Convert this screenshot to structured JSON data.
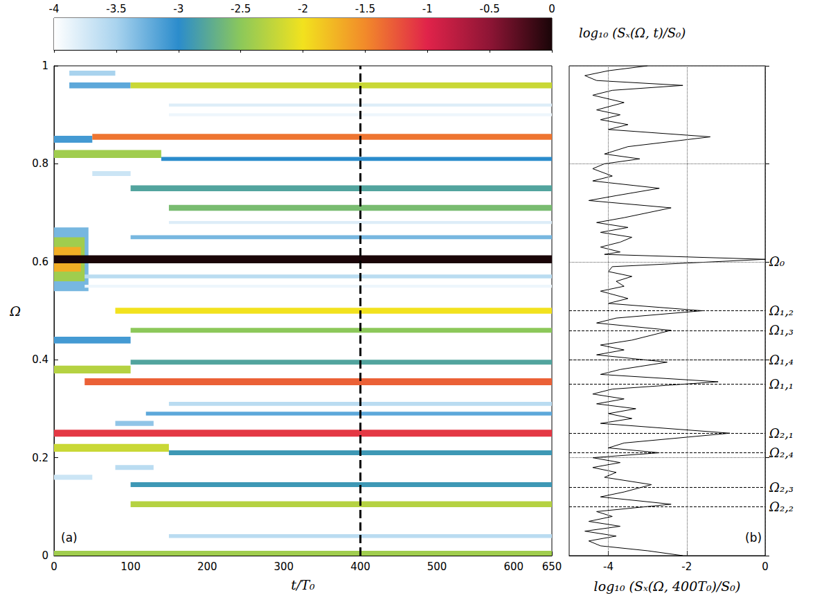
{
  "chart_data": [
    {
      "type": "heatmap",
      "panel_label": "(a)",
      "x_label": "t/T₀",
      "y_label": "Ω",
      "xlim": [
        0,
        650
      ],
      "xticks": [
        0,
        100,
        200,
        300,
        400,
        500,
        600
      ],
      "ylim": [
        0,
        1
      ],
      "yticks": [
        0,
        0.2,
        0.4,
        0.6,
        0.8,
        1
      ],
      "grid": false,
      "colorbar": {
        "label": "log₁₀ (Sₓ(Ω, t)/S₀)",
        "range": [
          -4,
          0
        ],
        "ticks": [
          -4,
          -3.5,
          -3,
          -2.5,
          -2,
          -1.5,
          -1,
          -0.5,
          0
        ]
      },
      "vline": {
        "x": 400,
        "line_style": "dashed"
      },
      "bands": [
        {
          "t": [
            0,
            45
          ],
          "omega": 0.605,
          "width": 0.13,
          "level": -3.3
        },
        {
          "t": [
            0,
            40
          ],
          "omega": 0.605,
          "width": 0.09,
          "level": -2.4
        },
        {
          "t": [
            0,
            35
          ],
          "omega": 0.605,
          "width": 0.05,
          "level": -1.7
        },
        {
          "t": [
            0,
            650
          ],
          "omega": 0.605,
          "width": 0.016,
          "level": 0
        },
        {
          "t": [
            0,
            650
          ],
          "omega": 0.005,
          "width": 0.01,
          "level": -2.4
        },
        {
          "t": [
            150,
            650
          ],
          "omega": 0.04,
          "width": 0.008,
          "level": -3.6
        },
        {
          "t": [
            100,
            650
          ],
          "omega": 0.105,
          "width": 0.012,
          "level": -2.3
        },
        {
          "t": [
            100,
            650
          ],
          "omega": 0.145,
          "width": 0.01,
          "level": -2.9
        },
        {
          "t": [
            0,
            50
          ],
          "omega": 0.16,
          "width": 0.01,
          "level": -3.7
        },
        {
          "t": [
            80,
            130
          ],
          "omega": 0.18,
          "width": 0.01,
          "level": -3.6
        },
        {
          "t": [
            0,
            150
          ],
          "omega": 0.22,
          "width": 0.016,
          "level": -2.2
        },
        {
          "t": [
            150,
            650
          ],
          "omega": 0.21,
          "width": 0.01,
          "level": -2.9
        },
        {
          "t": [
            0,
            650
          ],
          "omega": 0.25,
          "width": 0.014,
          "level": -1.1
        },
        {
          "t": [
            80,
            130
          ],
          "omega": 0.27,
          "width": 0.01,
          "level": -3.4
        },
        {
          "t": [
            120,
            650
          ],
          "omega": 0.29,
          "width": 0.008,
          "level": -3.2
        },
        {
          "t": [
            150,
            650
          ],
          "omega": 0.31,
          "width": 0.008,
          "level": -3.6
        },
        {
          "t": [
            40,
            650
          ],
          "omega": 0.355,
          "width": 0.014,
          "level": -1.3
        },
        {
          "t": [
            0,
            100
          ],
          "omega": 0.38,
          "width": 0.016,
          "level": -2.3
        },
        {
          "t": [
            100,
            650
          ],
          "omega": 0.395,
          "width": 0.01,
          "level": -2.8
        },
        {
          "t": [
            0,
            100
          ],
          "omega": 0.44,
          "width": 0.014,
          "level": -3.1
        },
        {
          "t": [
            100,
            650
          ],
          "omega": 0.46,
          "width": 0.01,
          "level": -2.5
        },
        {
          "t": [
            80,
            650
          ],
          "omega": 0.5,
          "width": 0.012,
          "level": -2.0
        },
        {
          "t": [
            40,
            650
          ],
          "omega": 0.57,
          "width": 0.008,
          "level": -3.6
        },
        {
          "t": [
            40,
            650
          ],
          "omega": 0.55,
          "width": 0.006,
          "level": -3.9
        },
        {
          "t": [
            100,
            650
          ],
          "omega": 0.65,
          "width": 0.008,
          "level": -3.3
        },
        {
          "t": [
            150,
            650
          ],
          "omega": 0.68,
          "width": 0.006,
          "level": -3.8
        },
        {
          "t": [
            150,
            650
          ],
          "omega": 0.71,
          "width": 0.012,
          "level": -2.6
        },
        {
          "t": [
            100,
            650
          ],
          "omega": 0.75,
          "width": 0.012,
          "level": -2.8
        },
        {
          "t": [
            50,
            100
          ],
          "omega": 0.78,
          "width": 0.01,
          "level": -3.7
        },
        {
          "t": [
            0,
            140
          ],
          "omega": 0.82,
          "width": 0.016,
          "level": -2.4
        },
        {
          "t": [
            140,
            650
          ],
          "omega": 0.81,
          "width": 0.008,
          "level": -3.0
        },
        {
          "t": [
            0,
            50
          ],
          "omega": 0.85,
          "width": 0.014,
          "level": -3.1
        },
        {
          "t": [
            50,
            650
          ],
          "omega": 0.855,
          "width": 0.012,
          "level": -1.4
        },
        {
          "t": [
            150,
            650
          ],
          "omega": 0.9,
          "width": 0.006,
          "level": -3.9
        },
        {
          "t": [
            150,
            650
          ],
          "omega": 0.92,
          "width": 0.006,
          "level": -3.8
        },
        {
          "t": [
            20,
            100
          ],
          "omega": 0.96,
          "width": 0.012,
          "level": -3.2
        },
        {
          "t": [
            100,
            650
          ],
          "omega": 0.96,
          "width": 0.012,
          "level": -2.2
        },
        {
          "t": [
            20,
            80
          ],
          "omega": 0.985,
          "width": 0.01,
          "level": -3.5
        }
      ]
    },
    {
      "type": "line",
      "panel_label": "(b)",
      "orientation": "horizontal",
      "x_label": "log₁₀ (Sₓ(Ω, 400T₀)/S₀)",
      "xlim": [
        -5,
        0
      ],
      "xticks": [
        -4,
        -2,
        0
      ],
      "ylim": [
        0,
        1
      ],
      "yticks": [
        0,
        0.2,
        0.4,
        0.6,
        0.8,
        1
      ],
      "grid": true,
      "tick_labels": "x",
      "color": "#000000",
      "omega": [
        0,
        0.01,
        0.02,
        0.03,
        0.04,
        0.05,
        0.06,
        0.07,
        0.08,
        0.09,
        0.105,
        0.12,
        0.13,
        0.145,
        0.16,
        0.17,
        0.18,
        0.19,
        0.2,
        0.21,
        0.22,
        0.23,
        0.25,
        0.27,
        0.28,
        0.29,
        0.3,
        0.31,
        0.32,
        0.33,
        0.34,
        0.355,
        0.37,
        0.38,
        0.395,
        0.41,
        0.42,
        0.43,
        0.44,
        0.46,
        0.475,
        0.485,
        0.5,
        0.515,
        0.525,
        0.54,
        0.55,
        0.56,
        0.57,
        0.58,
        0.59,
        0.605,
        0.615,
        0.62,
        0.63,
        0.64,
        0.65,
        0.66,
        0.67,
        0.68,
        0.69,
        0.71,
        0.725,
        0.735,
        0.75,
        0.765,
        0.775,
        0.79,
        0.8,
        0.81,
        0.82,
        0.835,
        0.855,
        0.87,
        0.88,
        0.89,
        0.9,
        0.91,
        0.925,
        0.94,
        0.95,
        0.96,
        0.97,
        0.98,
        0.99,
        1
      ],
      "values": [
        -2.1,
        -3.0,
        -4.2,
        -4.5,
        -3.8,
        -4.6,
        -3.7,
        -4.5,
        -3.9,
        -4.3,
        -2.4,
        -4.2,
        -3.6,
        -2.9,
        -4.1,
        -3.8,
        -4.4,
        -3.7,
        -4.4,
        -2.7,
        -4.0,
        -3.6,
        -0.9,
        -4.2,
        -3.4,
        -4.0,
        -3.3,
        -4.3,
        -3.6,
        -4.4,
        -3.9,
        -1.2,
        -4.2,
        -3.7,
        -2.5,
        -4.3,
        -3.6,
        -4.2,
        -3.4,
        -2.4,
        -4.3,
        -3.8,
        -1.6,
        -4.0,
        -3.5,
        -4.2,
        -3.6,
        -3.8,
        -3.4,
        -4.0,
        -3.9,
        0,
        -4.1,
        -3.7,
        -4.2,
        -3.7,
        -3.4,
        -4.2,
        -3.5,
        -4.3,
        -3.6,
        -2.4,
        -4.5,
        -3.8,
        -2.7,
        -4.4,
        -3.9,
        -4.4,
        -4.1,
        -3.2,
        -4.1,
        -3.5,
        -1.4,
        -4.0,
        -3.5,
        -4.2,
        -3.7,
        -4.3,
        -3.6,
        -4.4,
        -3.9,
        -2.1,
        -4.3,
        -4.6,
        -4.0,
        -3.0
      ],
      "annotations": [
        {
          "label": "Ω₀",
          "omega": 0.6,
          "line_style": "dotted"
        },
        {
          "label": "Ω₁,₂",
          "omega": 0.5,
          "line_style": "dashed"
        },
        {
          "label": "Ω₁,₃",
          "omega": 0.46,
          "line_style": "dashed"
        },
        {
          "label": "Ω₁,₄",
          "omega": 0.395,
          "line_style": "dashed"
        },
        {
          "label": "Ω₁,₁",
          "omega": 0.355,
          "line_style": "dashed"
        },
        {
          "label": "Ω₂,₁",
          "omega": 0.25,
          "line_style": "dashed"
        },
        {
          "label": "Ω₂,₄",
          "omega": 0.21,
          "line_style": "dashed"
        },
        {
          "label": "Ω₂,₃",
          "omega": 0.145,
          "line_style": "dashed"
        },
        {
          "label": "Ω₂,₂",
          "omega": 0.105,
          "line_style": "dashed"
        }
      ]
    }
  ]
}
